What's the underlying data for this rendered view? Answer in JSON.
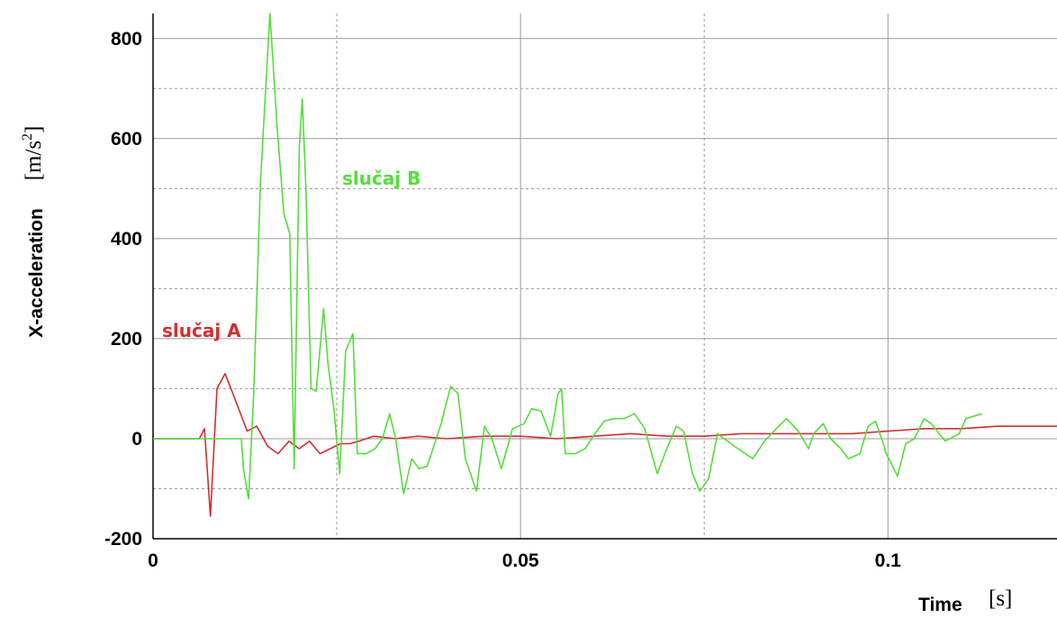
{
  "chart_data": {
    "type": "line",
    "xlabel": "Time",
    "xunit": "[s]",
    "ylabel": "X-acceleration",
    "yunit_base": "[m/s",
    "yunit_exp": "2",
    "yunit_end": "]",
    "xlim": [
      0,
      0.123
    ],
    "ylim": [
      -200,
      850
    ],
    "x_ticks": [
      0,
      0.05,
      0.1
    ],
    "x_tick_labels": [
      "0",
      "0.05",
      "0.1"
    ],
    "x_minor_ticks": [
      0.025,
      0.075
    ],
    "y_ticks": [
      -200,
      0,
      200,
      400,
      600,
      800
    ],
    "y_tick_labels": [
      "-200",
      "0",
      "200",
      "400",
      "600",
      "800"
    ],
    "y_minor_ticks": [
      -100,
      100,
      300,
      500,
      700
    ],
    "grid": true,
    "series": [
      {
        "name": "slučaj A",
        "color": "#d32f2f",
        "points": [
          [
            0,
            0
          ],
          [
            0.0063,
            0
          ],
          [
            0.007,
            20
          ],
          [
            0.0078,
            -155
          ],
          [
            0.0087,
            100
          ],
          [
            0.0098,
            130
          ],
          [
            0.011,
            85
          ],
          [
            0.0128,
            15
          ],
          [
            0.0141,
            25
          ],
          [
            0.0156,
            -15
          ],
          [
            0.017,
            -30
          ],
          [
            0.0185,
            -5
          ],
          [
            0.0199,
            -20
          ],
          [
            0.0213,
            -5
          ],
          [
            0.0227,
            -30
          ],
          [
            0.0241,
            -20
          ],
          [
            0.0255,
            -10
          ],
          [
            0.0268,
            -10
          ],
          [
            0.028,
            -5
          ],
          [
            0.03,
            5
          ],
          [
            0.033,
            0
          ],
          [
            0.036,
            5
          ],
          [
            0.04,
            0
          ],
          [
            0.045,
            5
          ],
          [
            0.05,
            5
          ],
          [
            0.055,
            0
          ],
          [
            0.06,
            5
          ],
          [
            0.065,
            10
          ],
          [
            0.07,
            5
          ],
          [
            0.075,
            5
          ],
          [
            0.08,
            10
          ],
          [
            0.085,
            10
          ],
          [
            0.09,
            10
          ],
          [
            0.095,
            10
          ],
          [
            0.1,
            15
          ],
          [
            0.105,
            20
          ],
          [
            0.11,
            20
          ],
          [
            0.115,
            25
          ],
          [
            0.123,
            25
          ]
        ]
      },
      {
        "name": "slučaj B",
        "color": "#55dd3c",
        "points": [
          [
            0,
            0
          ],
          [
            0.012,
            0
          ],
          [
            0.0123,
            -60
          ],
          [
            0.013,
            -120
          ],
          [
            0.0137,
            90
          ],
          [
            0.0146,
            510
          ],
          [
            0.0159,
            850
          ],
          [
            0.0169,
            620
          ],
          [
            0.0178,
            450
          ],
          [
            0.0186,
            410
          ],
          [
            0.0192,
            -60
          ],
          [
            0.0199,
            580
          ],
          [
            0.0203,
            680
          ],
          [
            0.0208,
            500
          ],
          [
            0.0215,
            100
          ],
          [
            0.0222,
            95
          ],
          [
            0.0232,
            260
          ],
          [
            0.0238,
            150
          ],
          [
            0.0246,
            60
          ],
          [
            0.0254,
            -70
          ],
          [
            0.0262,
            175
          ],
          [
            0.0272,
            210
          ],
          [
            0.0278,
            -30
          ],
          [
            0.029,
            -30
          ],
          [
            0.0302,
            -20
          ],
          [
            0.0312,
            0
          ],
          [
            0.0322,
            50
          ],
          [
            0.033,
            0
          ],
          [
            0.0341,
            -110
          ],
          [
            0.0352,
            -40
          ],
          [
            0.0362,
            -60
          ],
          [
            0.0373,
            -55
          ],
          [
            0.0392,
            30
          ],
          [
            0.0405,
            105
          ],
          [
            0.0415,
            90
          ],
          [
            0.0425,
            -40
          ],
          [
            0.044,
            -105
          ],
          [
            0.0451,
            25
          ],
          [
            0.0461,
            0
          ],
          [
            0.0474,
            -60
          ],
          [
            0.0489,
            20
          ],
          [
            0.0505,
            30
          ],
          [
            0.0515,
            60
          ],
          [
            0.0528,
            55
          ],
          [
            0.0541,
            5
          ],
          [
            0.0551,
            90
          ],
          [
            0.0556,
            100
          ],
          [
            0.0561,
            -30
          ],
          [
            0.0575,
            -30
          ],
          [
            0.0588,
            -20
          ],
          [
            0.0601,
            10
          ],
          [
            0.0614,
            35
          ],
          [
            0.0627,
            40
          ],
          [
            0.0641,
            40
          ],
          [
            0.0655,
            50
          ],
          [
            0.0669,
            20
          ],
          [
            0.0686,
            -70
          ],
          [
            0.0699,
            -20
          ],
          [
            0.0712,
            25
          ],
          [
            0.0722,
            15
          ],
          [
            0.0734,
            -70
          ],
          [
            0.0744,
            -105
          ],
          [
            0.0756,
            -80
          ],
          [
            0.0768,
            10
          ],
          [
            0.0777,
            0
          ],
          [
            0.0796,
            -20
          ],
          [
            0.0816,
            -40
          ],
          [
            0.0832,
            -5
          ],
          [
            0.0848,
            20
          ],
          [
            0.0862,
            40
          ],
          [
            0.0878,
            15
          ],
          [
            0.0892,
            -20
          ],
          [
            0.0899,
            10
          ],
          [
            0.0912,
            30
          ],
          [
            0.0922,
            0
          ],
          [
            0.0936,
            -20
          ],
          [
            0.0946,
            -40
          ],
          [
            0.0962,
            -30
          ],
          [
            0.0973,
            25
          ],
          [
            0.0983,
            35
          ],
          [
            0.0996,
            -20
          ],
          [
            0.0996,
            -25
          ],
          [
            0.1013,
            -75
          ],
          [
            0.1024,
            -10
          ],
          [
            0.1036,
            0
          ],
          [
            0.1049,
            40
          ],
          [
            0.1059,
            30
          ],
          [
            0.1078,
            -5
          ],
          [
            0.1097,
            10
          ],
          [
            0.1106,
            40
          ],
          [
            0.1128,
            50
          ]
        ]
      }
    ]
  }
}
